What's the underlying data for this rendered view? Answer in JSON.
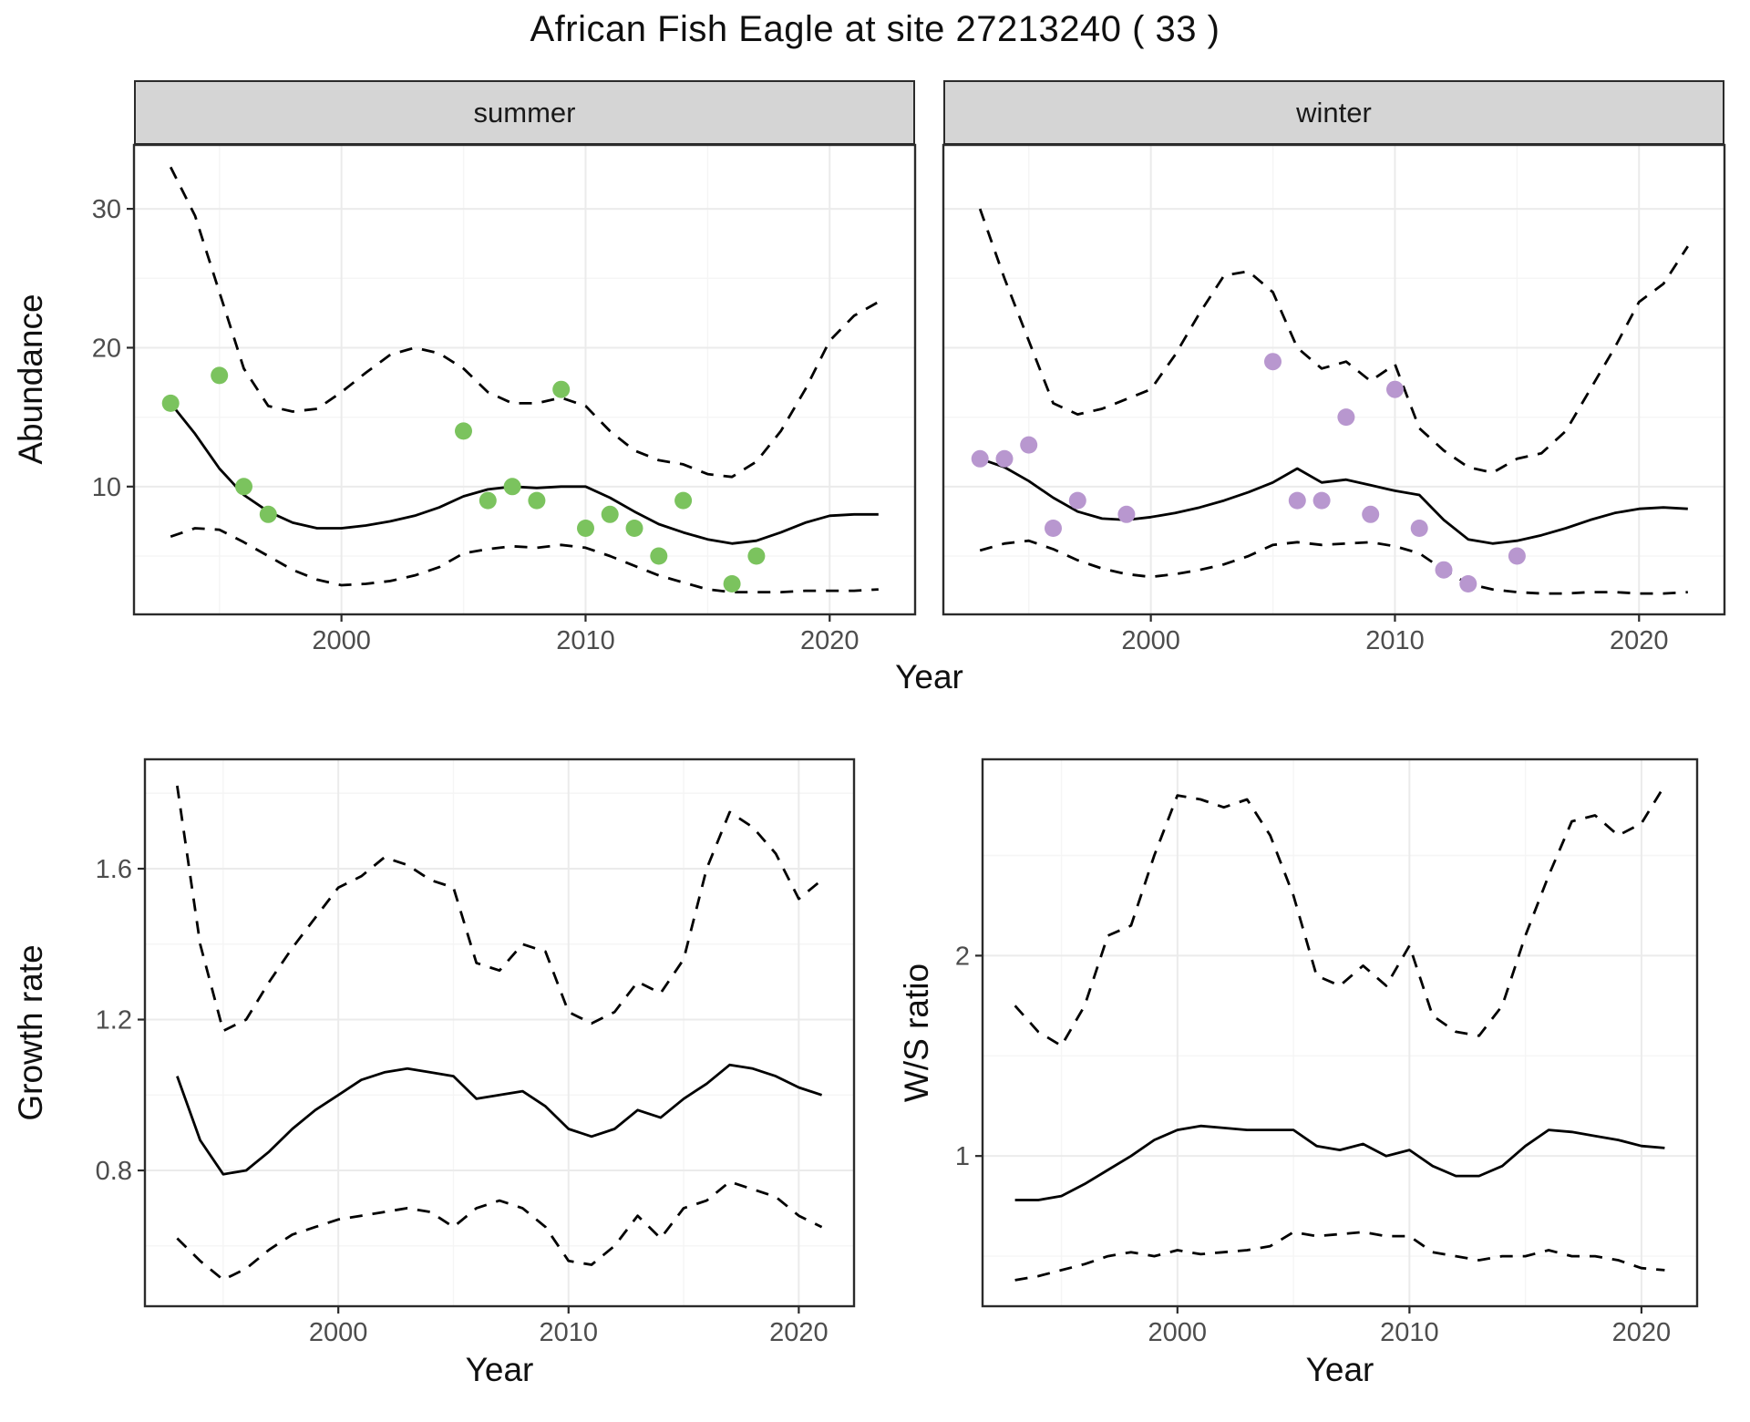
{
  "title": "African Fish Eagle at site 27213240 ( 33 )",
  "colors": {
    "summer_point": "#7bc35e",
    "winter_point": "#b897cf",
    "line": "#000000",
    "strip_bg": "#d5d5d5",
    "grid_major": "#ebebeb",
    "grid_minor": "#f5f5f5",
    "border": "#2b2b2b",
    "tick_text": "#4d4d4d",
    "panel_bg": "#ffffff"
  },
  "chart_data": [
    {
      "id": "abundance-summer",
      "type": "scatter",
      "facet": "summer",
      "title": "summer",
      "xlabel": "Year",
      "ylabel": "Abundance",
      "xlim": [
        1991.5,
        2023.5
      ],
      "ylim": [
        0.8,
        34.6
      ],
      "xticks": [
        2000,
        2010,
        2020
      ],
      "xticks_minor": [
        1995,
        2005,
        2015
      ],
      "yticks": [
        10,
        20,
        30
      ],
      "yticks_minor": [
        5,
        15,
        25
      ],
      "grid": true,
      "legend": "none",
      "x": [
        1993,
        1994,
        1995,
        1996,
        1997,
        1998,
        1999,
        2000,
        2001,
        2002,
        2003,
        2004,
        2005,
        2006,
        2007,
        2008,
        2009,
        2010,
        2011,
        2012,
        2013,
        2014,
        2015,
        2016,
        2017,
        2018,
        2019,
        2020,
        2021,
        2022
      ],
      "series": [
        {
          "name": "fit",
          "style": "solid",
          "y": [
            16.0,
            13.8,
            11.3,
            9.4,
            8.2,
            7.4,
            7.0,
            7.0,
            7.2,
            7.5,
            7.9,
            8.5,
            9.3,
            9.8,
            10.0,
            9.9,
            10.0,
            10.0,
            9.2,
            8.2,
            7.3,
            6.7,
            6.2,
            5.9,
            6.1,
            6.7,
            7.4,
            7.9,
            8.0,
            8.0
          ]
        },
        {
          "name": "upper-ci",
          "style": "dashed",
          "y": [
            33.0,
            29.5,
            24.0,
            18.5,
            15.8,
            15.4,
            15.6,
            16.8,
            18.2,
            19.5,
            20.0,
            19.6,
            18.5,
            16.8,
            16.0,
            16.0,
            16.4,
            15.8,
            14.0,
            12.6,
            11.9,
            11.6,
            10.9,
            10.7,
            11.8,
            14.0,
            17.0,
            20.5,
            22.3,
            23.3
          ]
        },
        {
          "name": "lower-ci",
          "style": "dashed",
          "y": [
            6.4,
            7.0,
            6.9,
            6.0,
            5.0,
            4.0,
            3.3,
            2.9,
            3.0,
            3.2,
            3.6,
            4.2,
            5.2,
            5.5,
            5.7,
            5.6,
            5.8,
            5.6,
            5.0,
            4.3,
            3.6,
            3.1,
            2.6,
            2.4,
            2.4,
            2.4,
            2.5,
            2.5,
            2.5,
            2.6
          ]
        }
      ],
      "points": {
        "color_key": "summer_point",
        "x": [
          1993,
          1995,
          1996,
          1997,
          2005,
          2006,
          2007,
          2008,
          2009,
          2010,
          2011,
          2012,
          2013,
          2014,
          2016,
          2017
        ],
        "y": [
          16,
          18,
          10,
          8,
          14,
          9,
          10,
          9,
          17,
          7,
          8,
          7,
          5,
          9,
          3,
          5
        ]
      }
    },
    {
      "id": "abundance-winter",
      "type": "scatter",
      "facet": "winter",
      "title": "winter",
      "xlabel": "Year",
      "ylabel": "Abundance",
      "xlim": [
        1991.5,
        2023.5
      ],
      "ylim": [
        0.8,
        34.6
      ],
      "xticks": [
        2000,
        2010,
        2020
      ],
      "xticks_minor": [
        1995,
        2005,
        2015
      ],
      "yticks": [
        10,
        20,
        30
      ],
      "yticks_minor": [
        5,
        15,
        25
      ],
      "grid": true,
      "legend": "none",
      "x": [
        1993,
        1994,
        1995,
        1996,
        1997,
        1998,
        1999,
        2000,
        2001,
        2002,
        2003,
        2004,
        2005,
        2006,
        2007,
        2008,
        2009,
        2010,
        2011,
        2012,
        2013,
        2014,
        2015,
        2016,
        2017,
        2018,
        2019,
        2020,
        2021,
        2022
      ],
      "series": [
        {
          "name": "fit",
          "style": "solid",
          "y": [
            12.0,
            11.4,
            10.4,
            9.2,
            8.2,
            7.7,
            7.6,
            7.8,
            8.1,
            8.5,
            9.0,
            9.6,
            10.3,
            11.3,
            10.3,
            10.5,
            10.1,
            9.7,
            9.4,
            7.6,
            6.2,
            5.9,
            6.1,
            6.5,
            7.0,
            7.6,
            8.1,
            8.4,
            8.5,
            8.4
          ]
        },
        {
          "name": "upper-ci",
          "style": "dashed",
          "y": [
            30.0,
            25.0,
            20.5,
            16.0,
            15.2,
            15.6,
            16.3,
            17.0,
            19.5,
            22.5,
            25.2,
            25.5,
            24.0,
            20.0,
            18.5,
            19.0,
            17.6,
            18.8,
            14.2,
            12.6,
            11.4,
            11.0,
            12.0,
            12.4,
            14.0,
            17.0,
            20.0,
            23.3,
            24.6,
            27.3
          ]
        },
        {
          "name": "lower-ci",
          "style": "dashed",
          "y": [
            5.4,
            5.9,
            6.1,
            5.5,
            4.7,
            4.1,
            3.7,
            3.5,
            3.7,
            4.0,
            4.4,
            5.0,
            5.8,
            6.0,
            5.8,
            5.9,
            6.0,
            5.7,
            5.2,
            4.0,
            3.0,
            2.6,
            2.4,
            2.3,
            2.3,
            2.4,
            2.4,
            2.3,
            2.3,
            2.4
          ]
        }
      ],
      "points": {
        "color_key": "winter_point",
        "x": [
          1993,
          1994,
          1995,
          1996,
          1997,
          1999,
          2005,
          2006,
          2007,
          2008,
          2009,
          2010,
          2011,
          2012,
          2013,
          2015
        ],
        "y": [
          12,
          12,
          13,
          7,
          9,
          8,
          19,
          9,
          9,
          15,
          8,
          17,
          7,
          4,
          3,
          5
        ]
      }
    },
    {
      "id": "growth-rate",
      "type": "line",
      "title": "",
      "xlabel": "Year",
      "ylabel": "Growth rate",
      "xlim": [
        1991.6,
        2022.4
      ],
      "ylim": [
        0.44,
        1.89
      ],
      "xticks": [
        2000,
        2010,
        2020
      ],
      "xticks_minor": [
        1995,
        2005,
        2015
      ],
      "yticks": [
        0.8,
        1.2,
        1.6
      ],
      "yticks_minor": [
        0.6,
        1.0,
        1.4,
        1.8
      ],
      "grid": true,
      "legend": "none",
      "x": [
        1993,
        1994,
        1995,
        1996,
        1997,
        1998,
        1999,
        2000,
        2001,
        2002,
        2003,
        2004,
        2005,
        2006,
        2007,
        2008,
        2009,
        2010,
        2011,
        2012,
        2013,
        2014,
        2015,
        2016,
        2017,
        2018,
        2019,
        2020,
        2021
      ],
      "series": [
        {
          "name": "fit",
          "style": "solid",
          "y": [
            1.05,
            0.88,
            0.79,
            0.8,
            0.85,
            0.91,
            0.96,
            1.0,
            1.04,
            1.06,
            1.07,
            1.06,
            1.05,
            0.99,
            1.0,
            1.01,
            0.97,
            0.91,
            0.89,
            0.91,
            0.96,
            0.94,
            0.99,
            1.03,
            1.08,
            1.07,
            1.05,
            1.02,
            1.0
          ]
        },
        {
          "name": "upper-ci",
          "style": "dashed",
          "y": [
            1.82,
            1.4,
            1.17,
            1.2,
            1.3,
            1.39,
            1.47,
            1.55,
            1.58,
            1.63,
            1.61,
            1.57,
            1.55,
            1.35,
            1.33,
            1.4,
            1.38,
            1.22,
            1.19,
            1.22,
            1.3,
            1.27,
            1.36,
            1.6,
            1.75,
            1.71,
            1.64,
            1.52,
            1.57
          ]
        },
        {
          "name": "lower-ci",
          "style": "dashed",
          "y": [
            0.62,
            0.56,
            0.51,
            0.54,
            0.59,
            0.63,
            0.65,
            0.67,
            0.68,
            0.69,
            0.7,
            0.69,
            0.65,
            0.7,
            0.72,
            0.7,
            0.65,
            0.56,
            0.55,
            0.6,
            0.68,
            0.62,
            0.7,
            0.72,
            0.77,
            0.75,
            0.73,
            0.68,
            0.65
          ]
        }
      ]
    },
    {
      "id": "ws-ratio",
      "type": "line",
      "title": "",
      "xlabel": "Year",
      "ylabel": "W/S ratio",
      "xlim": [
        1991.6,
        2022.4
      ],
      "ylim": [
        0.25,
        2.98
      ],
      "xticks": [
        2000,
        2010,
        2020
      ],
      "xticks_minor": [
        1995,
        2005,
        2015
      ],
      "yticks": [
        1,
        2
      ],
      "yticks_minor": [
        0.5,
        1.5,
        2.5
      ],
      "grid": true,
      "legend": "none",
      "x": [
        1993,
        1994,
        1995,
        1996,
        1997,
        1998,
        1999,
        2000,
        2001,
        2002,
        2003,
        2004,
        2005,
        2006,
        2007,
        2008,
        2009,
        2010,
        2011,
        2012,
        2013,
        2014,
        2015,
        2016,
        2017,
        2018,
        2019,
        2020,
        2021
      ],
      "series": [
        {
          "name": "fit",
          "style": "solid",
          "y": [
            0.78,
            0.78,
            0.8,
            0.86,
            0.93,
            1.0,
            1.08,
            1.13,
            1.15,
            1.14,
            1.13,
            1.13,
            1.13,
            1.05,
            1.03,
            1.06,
            1.0,
            1.03,
            0.95,
            0.9,
            0.9,
            0.95,
            1.05,
            1.13,
            1.12,
            1.1,
            1.08,
            1.05,
            1.04
          ]
        },
        {
          "name": "upper-ci",
          "style": "dashed",
          "y": [
            1.75,
            1.62,
            1.55,
            1.75,
            2.1,
            2.15,
            2.5,
            2.8,
            2.78,
            2.74,
            2.78,
            2.6,
            2.3,
            1.9,
            1.85,
            1.95,
            1.85,
            2.05,
            1.7,
            1.62,
            1.6,
            1.75,
            2.1,
            2.4,
            2.67,
            2.7,
            2.6,
            2.66,
            2.85
          ]
        },
        {
          "name": "lower-ci",
          "style": "dashed",
          "y": [
            0.38,
            0.4,
            0.43,
            0.46,
            0.5,
            0.52,
            0.5,
            0.53,
            0.51,
            0.52,
            0.53,
            0.55,
            0.62,
            0.6,
            0.61,
            0.62,
            0.6,
            0.6,
            0.52,
            0.5,
            0.48,
            0.5,
            0.5,
            0.53,
            0.5,
            0.5,
            0.48,
            0.44,
            0.43
          ]
        }
      ]
    }
  ]
}
